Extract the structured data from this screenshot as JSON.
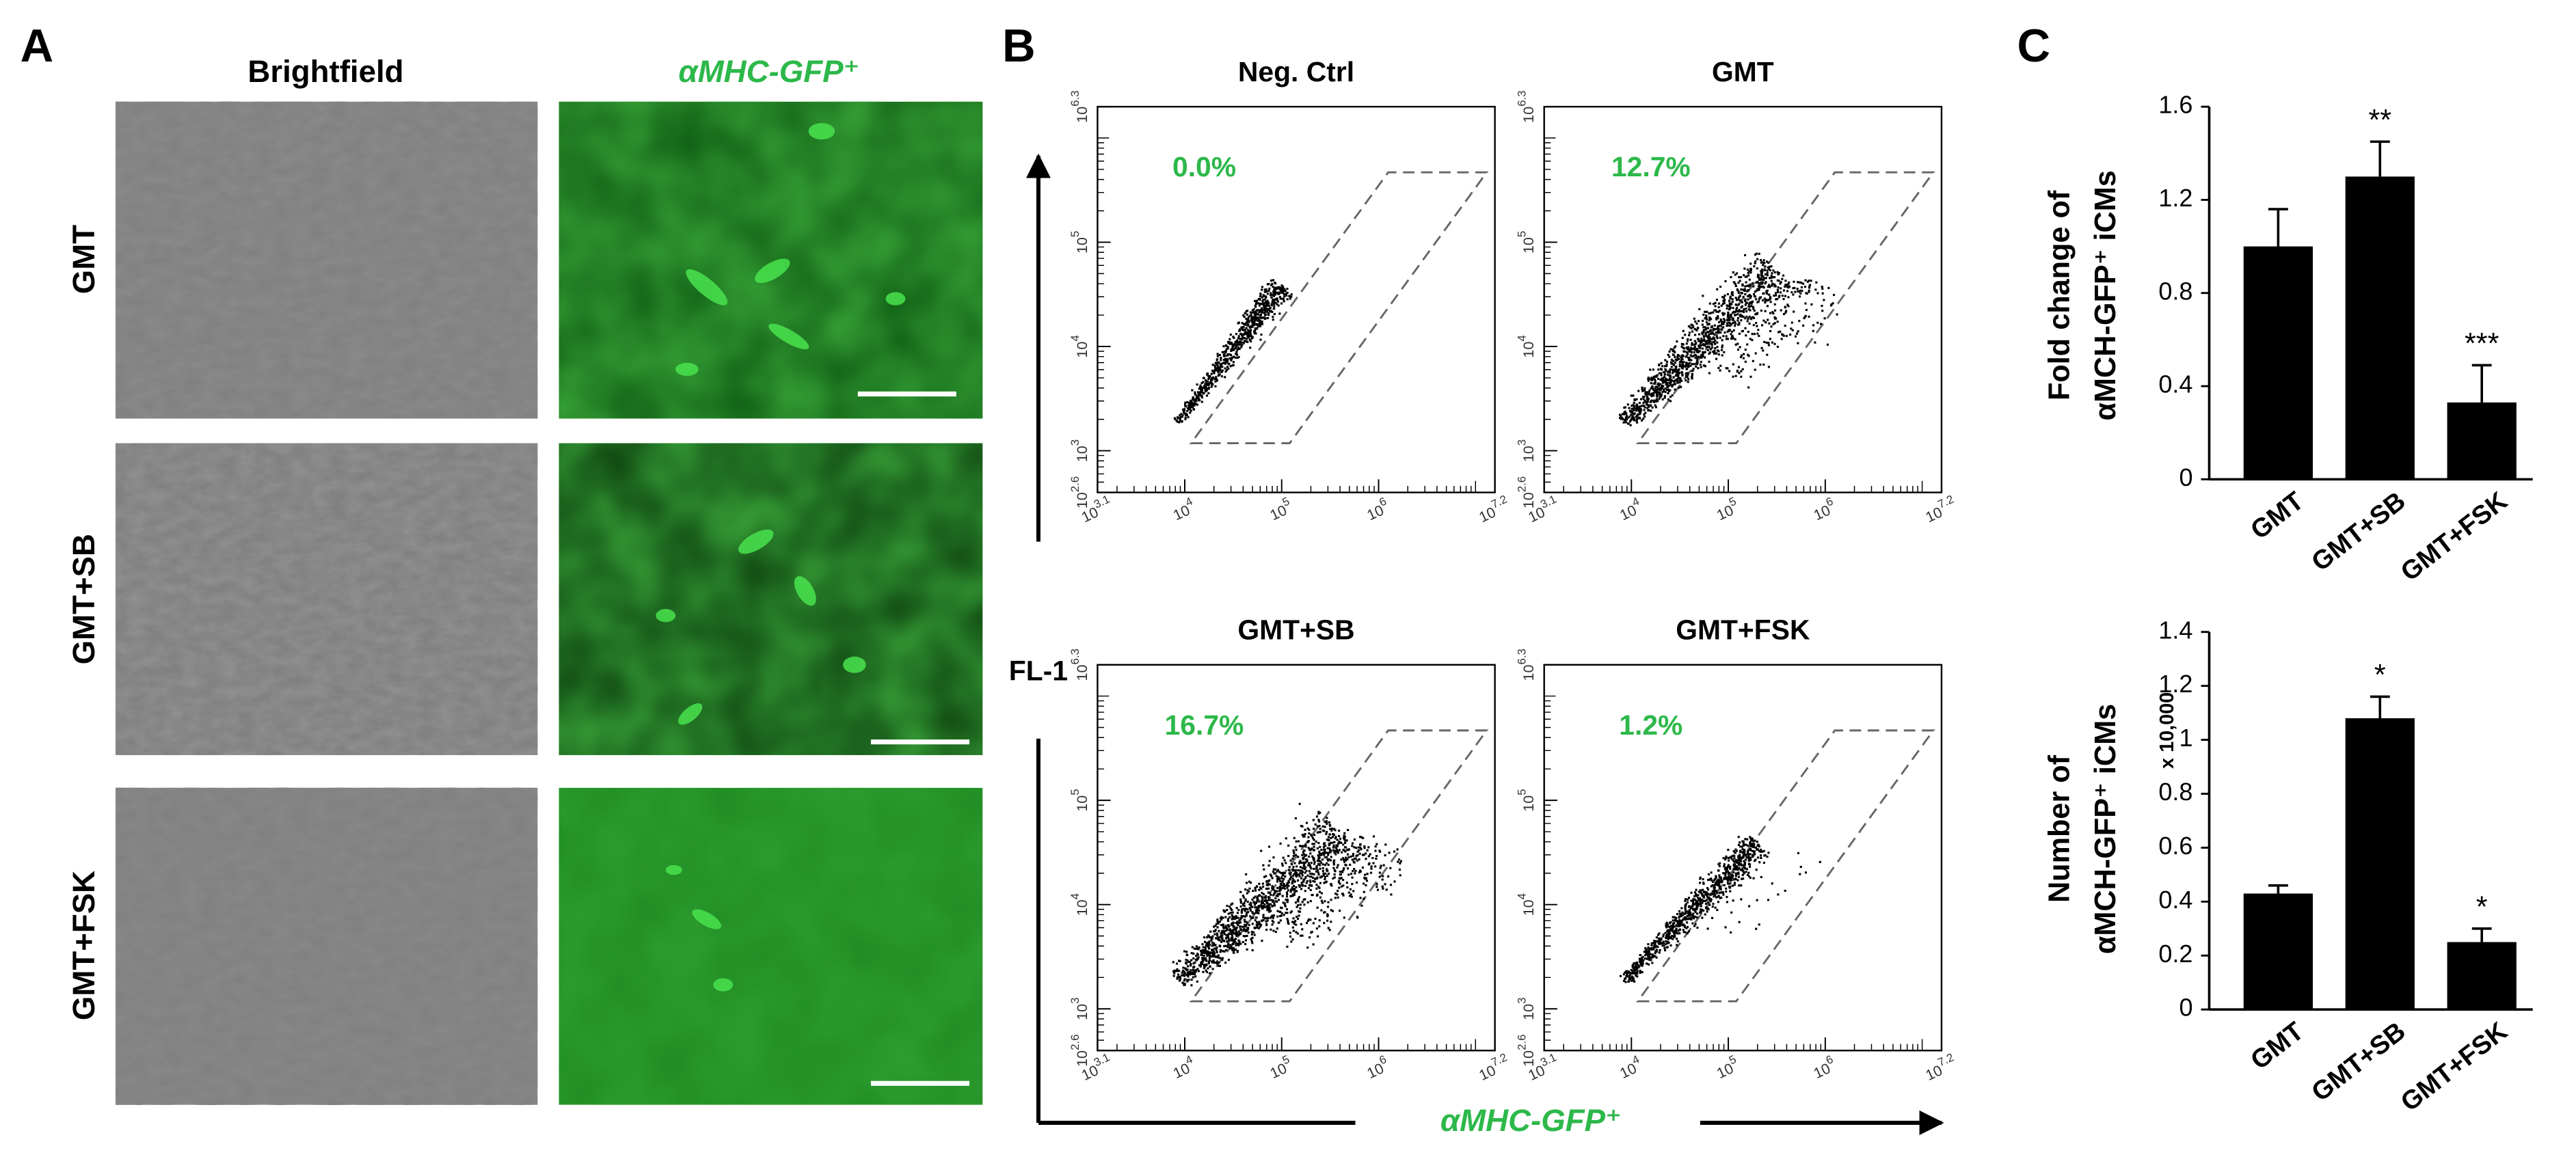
{
  "panel_a": {
    "label": "A",
    "column_titles": [
      "Brightfield",
      "αMHC-GFP⁺"
    ],
    "row_labels": [
      "GMT",
      "GMT+SB",
      "GMT+FSK"
    ]
  },
  "panel_b": {
    "label": "B",
    "y_axis_label": "FL-1",
    "x_axis_label": "αMHC-GFP⁺",
    "xticks": [
      {
        "base": "10",
        "exp": "3.1"
      },
      {
        "base": "10",
        "exp": "4"
      },
      {
        "base": "10",
        "exp": "5"
      },
      {
        "base": "10",
        "exp": "6"
      },
      {
        "base": "10",
        "exp": "7.2"
      }
    ],
    "yticks": [
      {
        "base": "10",
        "exp": "2.6"
      },
      {
        "base": "10",
        "exp": "3"
      },
      {
        "base": "10",
        "exp": "4"
      },
      {
        "base": "10",
        "exp": "5"
      },
      {
        "base": "10",
        "exp": "6.3"
      }
    ],
    "plots": [
      {
        "title": "Neg. Ctrl",
        "gate_percent": "0.0%"
      },
      {
        "title": "GMT",
        "gate_percent": "12.7%"
      },
      {
        "title": "GMT+SB",
        "gate_percent": "16.7%"
      },
      {
        "title": "GMT+FSK",
        "gate_percent": "1.2%"
      }
    ]
  },
  "panel_c": {
    "label": "C"
  },
  "chart_data": [
    {
      "type": "bar",
      "y_label": [
        "Fold change of",
        "αMCH-GFP⁺ iCMs"
      ],
      "categories": [
        "GMT",
        "GMT+SB",
        "GMT+FSK"
      ],
      "values": [
        1.0,
        1.3,
        0.33
      ],
      "errors": [
        0.16,
        0.15,
        0.16
      ],
      "significance": [
        null,
        "**",
        "***"
      ],
      "color": "#000000",
      "ylim": [
        0,
        1.6
      ],
      "yticks": [
        0,
        0.4,
        0.8,
        1.2,
        1.6
      ]
    },
    {
      "type": "bar",
      "y_label": [
        "Number of",
        "αMCH-GFP⁺ iCMs"
      ],
      "y_unit": "x 10,000",
      "categories": [
        "GMT",
        "GMT+SB",
        "GMT+FSK"
      ],
      "values": [
        0.43,
        1.08,
        0.25
      ],
      "errors": [
        0.03,
        0.08,
        0.05
      ],
      "significance": [
        null,
        "*",
        "*"
      ],
      "color": "#000000",
      "ylim": [
        0,
        1.4
      ],
      "yticks": [
        0,
        0.2,
        0.4,
        0.6,
        0.8,
        1,
        1.2,
        1.4
      ]
    }
  ]
}
